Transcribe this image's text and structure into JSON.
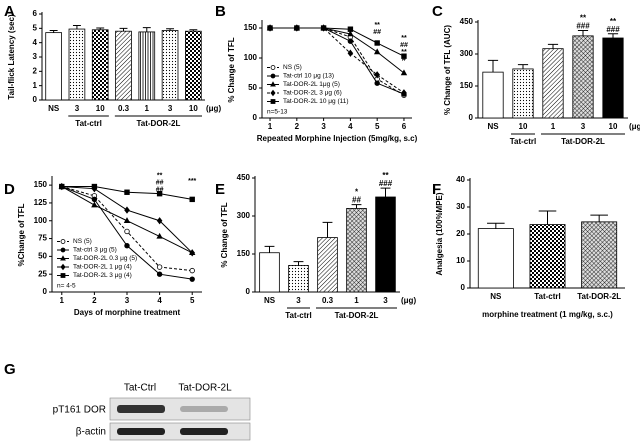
{
  "chart_data": [
    {
      "type": "bar",
      "panel": "A",
      "ylabel": "Tail-flick Latency (sec)",
      "categories": [
        "NS",
        "3",
        "10",
        "0.3",
        "1",
        "3",
        "10"
      ],
      "values": [
        4.7,
        4.95,
        4.9,
        4.8,
        4.75,
        4.85,
        4.8
      ],
      "errors": [
        0.15,
        0.25,
        0.12,
        0.2,
        0.3,
        0.12,
        0.1
      ],
      "patterns": [
        "white",
        "dots",
        "checker",
        "hatch",
        "vlines",
        "dots",
        "checker"
      ],
      "groups": [
        null,
        "Tat-ctrl",
        "Tat-ctrl",
        "Tat-DOR-2L",
        "Tat-DOR-2L",
        "Tat-DOR-2L",
        "Tat-DOR-2L"
      ],
      "unit": "(μg)",
      "ylim": [
        0,
        6
      ],
      "yticks": [
        0,
        1,
        2,
        3,
        4,
        5,
        6
      ]
    },
    {
      "type": "line",
      "panel": "B",
      "ylabel": "% Change of TFL",
      "xlabel": "Repeated Morphine Injection (5mg/kg, s.c)",
      "x": [
        1,
        2,
        3,
        4,
        5,
        6
      ],
      "xlim": [
        0.7,
        6.3
      ],
      "xticks": [
        1,
        2,
        3,
        4,
        5,
        6
      ],
      "ylim": [
        0,
        160
      ],
      "yticks": [
        0,
        50,
        100,
        150
      ],
      "series": [
        {
          "name": "NS (5)",
          "marker": "circle-open",
          "dashed": true,
          "values": [
            150,
            150,
            150,
            135,
            65,
            38
          ]
        },
        {
          "name": "Tat-ctrl 10 μg (13)",
          "marker": "circle",
          "dashed": false,
          "values": [
            150,
            150,
            150,
            128,
            58,
            40
          ]
        },
        {
          "name": "Tat-DOR-2L 1μg (5)",
          "marker": "triangle",
          "dashed": false,
          "values": [
            150,
            150,
            150,
            140,
            110,
            75
          ]
        },
        {
          "name": "Tat-DOR-2L 3 μg (6)",
          "marker": "diamond",
          "dashed": true,
          "values": [
            150,
            150,
            150,
            108,
            72,
            42
          ]
        },
        {
          "name": "Tat-DOR-2L 10 μg (11)",
          "marker": "square",
          "dashed": false,
          "values": [
            150,
            150,
            150,
            148,
            125,
            103
          ]
        }
      ],
      "legend_note": "n=5-13",
      "legend": "lower left",
      "annotations": [
        null,
        null,
        null,
        null,
        [
          "**",
          "##"
        ],
        [
          "**",
          "##",
          "**",
          "#"
        ]
      ]
    },
    {
      "type": "bar",
      "panel": "C",
      "ylabel": "% Change of TFL (AUC)",
      "categories": [
        "NS",
        "10",
        "1",
        "3",
        "10"
      ],
      "values": [
        215,
        230,
        325,
        385,
        375
      ],
      "errors": [
        55,
        20,
        20,
        25,
        20
      ],
      "patterns": [
        "white",
        "dots",
        "hatch",
        "cross",
        "black"
      ],
      "groups": [
        null,
        "Tat-ctrl",
        "Tat-DOR-2L",
        "Tat-DOR-2L",
        "Tat-DOR-2L"
      ],
      "annotations": [
        null,
        null,
        null,
        [
          "**",
          "###"
        ],
        [
          "**",
          "###"
        ]
      ],
      "unit": "(μg)",
      "ylim": [
        0,
        450
      ],
      "yticks": [
        0,
        150,
        300,
        450
      ]
    },
    {
      "type": "line",
      "panel": "D",
      "ylabel": "%Change of TFL",
      "xlabel": "Days of morphine treatment",
      "x": [
        1,
        2,
        3,
        4,
        5
      ],
      "xlim": [
        0.7,
        5.3
      ],
      "xticks": [
        1,
        2,
        3,
        4,
        5
      ],
      "ylim": [
        0,
        160
      ],
      "yticks": [
        0,
        25,
        50,
        75,
        100,
        125,
        150
      ],
      "series": [
        {
          "name": "NS (5)",
          "marker": "circle-open",
          "dashed": true,
          "values": [
            148,
            135,
            85,
            35,
            30
          ]
        },
        {
          "name": "Tat-ctrl 3 μg (5)",
          "marker": "circle",
          "dashed": false,
          "values": [
            148,
            130,
            65,
            25,
            18
          ]
        },
        {
          "name": "Tat-DOR-2L 0.3 μg (5)",
          "marker": "triangle",
          "dashed": false,
          "values": [
            148,
            122,
            100,
            78,
            55
          ]
        },
        {
          "name": "Tat-DOR-2L 1 μg (4)",
          "marker": "diamond",
          "dashed": false,
          "values": [
            148,
            145,
            115,
            100,
            55
          ]
        },
        {
          "name": "Tat-DOR-2L 3 μg (4)",
          "marker": "square",
          "dashed": false,
          "values": [
            148,
            148,
            140,
            138,
            130
          ]
        }
      ],
      "legend_note": "n= 4-5",
      "legend": "lower left",
      "annotations": [
        null,
        null,
        null,
        [
          "**",
          "##",
          "##"
        ],
        [
          "***"
        ]
      ]
    },
    {
      "type": "bar",
      "panel": "E",
      "ylabel": "% Change of TFL",
      "categories": [
        "NS",
        "3",
        "0.3",
        "1",
        "3"
      ],
      "values": [
        155,
        105,
        215,
        330,
        375
      ],
      "errors": [
        25,
        15,
        60,
        15,
        35
      ],
      "patterns": [
        "white",
        "dots",
        "hatch",
        "cross",
        "black"
      ],
      "groups": [
        null,
        "Tat-ctrl",
        "Tat-DOR-2L",
        "Tat-DOR-2L",
        "Tat-DOR-2L"
      ],
      "annotations": [
        null,
        null,
        null,
        [
          "*",
          "##"
        ],
        [
          "**",
          "###"
        ]
      ],
      "unit": "(μg)",
      "ylim": [
        0,
        450
      ],
      "yticks": [
        0,
        150,
        300,
        450
      ]
    },
    {
      "type": "bar",
      "panel": "F",
      "ylabel": "Analgesia (100%MPE)",
      "xlabel": "morphine treatment (1 mg/kg, s.c.)",
      "categories": [
        "NS",
        "Tat-ctrl",
        "Tat-DOR-2L"
      ],
      "values": [
        22,
        23.5,
        24.5
      ],
      "errors": [
        2,
        5,
        2.5
      ],
      "patterns": [
        "white",
        "checker",
        "cross"
      ],
      "ylim": [
        0,
        40
      ],
      "yticks": [
        0,
        10,
        20,
        30,
        40
      ]
    }
  ],
  "blot": {
    "panel": "G",
    "lanes": [
      "Tat-Ctrl",
      "Tat-DOR-2L"
    ],
    "rows": [
      "pT161 DOR",
      "β-actin"
    ]
  }
}
